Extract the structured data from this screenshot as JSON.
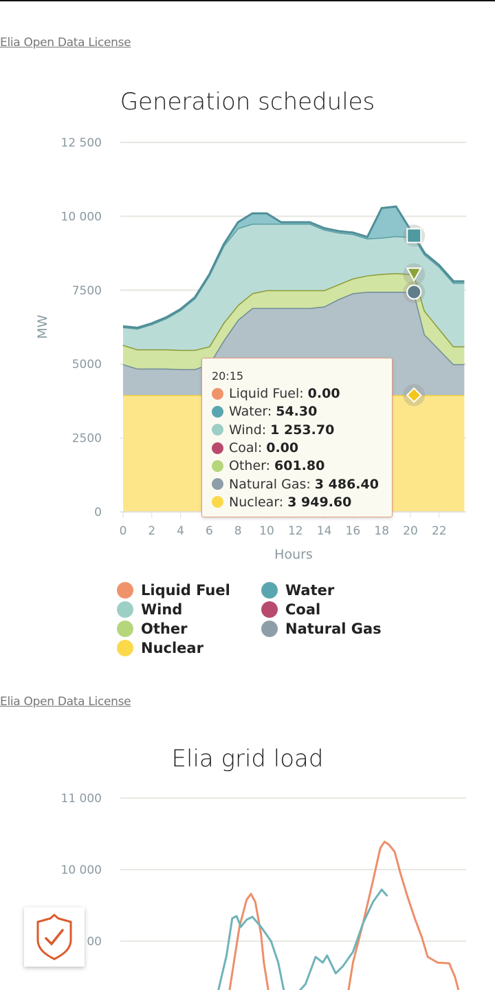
{
  "license_link": "Elia Open Data License",
  "chart_data": [
    {
      "type": "area",
      "stacked": true,
      "title": "Generation schedules",
      "xlabel": "Hours",
      "ylabel": "MW",
      "xlim": [
        0,
        24
      ],
      "ylim": [
        0,
        12500
      ],
      "x_ticks": [
        "0",
        "2",
        "4",
        "6",
        "8",
        "10",
        "12",
        "14",
        "16",
        "18",
        "20",
        "22"
      ],
      "y_ticks": [
        "0",
        "2500",
        "5000",
        "7500",
        "10 000",
        "12 500"
      ],
      "x": [
        0,
        1,
        2,
        3,
        4,
        5,
        6,
        7,
        8,
        9,
        10,
        11,
        12,
        13,
        14,
        15,
        16,
        17,
        18,
        19,
        20.25,
        21,
        22,
        23,
        23.75
      ],
      "series": [
        {
          "name": "Nuclear",
          "color": "#fcd94a",
          "values": [
            3950,
            3950,
            3950,
            3950,
            3950,
            3950,
            3950,
            3950,
            3950,
            3950,
            3950,
            3950,
            3950,
            3950,
            3950,
            3950,
            3950,
            3950,
            3950,
            3950,
            3949.6,
            3950,
            3950,
            3950,
            3950
          ]
        },
        {
          "name": "Natural Gas",
          "color": "#8e9ea8",
          "values": [
            1050,
            900,
            900,
            900,
            880,
            880,
            1050,
            1850,
            2550,
            2950,
            2950,
            2950,
            2950,
            2950,
            3000,
            3250,
            3450,
            3500,
            3500,
            3500,
            3486.4,
            2050,
            1550,
            1050,
            1050
          ]
        },
        {
          "name": "Other",
          "color": "#b5d67a",
          "values": [
            650,
            650,
            650,
            650,
            650,
            650,
            600,
            600,
            500,
            500,
            600,
            600,
            600,
            600,
            550,
            500,
            500,
            550,
            600,
            630,
            601.8,
            800,
            700,
            600,
            600
          ]
        },
        {
          "name": "Wind",
          "color": "#9ccfc6",
          "values": [
            600,
            700,
            850,
            1050,
            1350,
            1750,
            2400,
            2600,
            2600,
            2350,
            2250,
            2250,
            2250,
            2250,
            2050,
            1750,
            1500,
            1250,
            1230,
            1250,
            1253.7,
            1900,
            2100,
            2150,
            2150
          ]
        },
        {
          "name": "Water",
          "color": "#5aa6b0",
          "values": [
            30,
            30,
            30,
            30,
            30,
            30,
            30,
            50,
            200,
            350,
            350,
            50,
            50,
            50,
            50,
            50,
            50,
            50,
            1000,
            1000,
            54.3,
            50,
            50,
            50,
            50
          ]
        },
        {
          "name": "Coal",
          "color": "#b84a6e",
          "values": [
            0,
            0,
            0,
            0,
            0,
            0,
            0,
            0,
            0,
            0,
            0,
            0,
            0,
            0,
            0,
            0,
            0,
            0,
            0,
            0,
            0,
            0,
            0,
            0,
            0
          ]
        },
        {
          "name": "Liquid Fuel",
          "color": "#f0936b",
          "values": [
            0,
            0,
            0,
            0,
            0,
            0,
            0,
            0,
            0,
            0,
            0,
            0,
            0,
            0,
            0,
            0,
            0,
            0,
            0,
            0,
            0,
            0,
            0,
            0,
            0
          ]
        }
      ],
      "tooltip": {
        "time": "20:15",
        "rows": [
          {
            "label": "Liquid Fuel:",
            "value": "0.00",
            "color": "#f0936b"
          },
          {
            "label": "Water:",
            "value": "54.30",
            "color": "#5aa6b0"
          },
          {
            "label": "Wind:",
            "value": "1 253.70",
            "color": "#9ccfc6"
          },
          {
            "label": "Coal:",
            "value": "0.00",
            "color": "#b84a6e"
          },
          {
            "label": "Other:",
            "value": "601.80",
            "color": "#b5d67a"
          },
          {
            "label": "Natural Gas:",
            "value": "3 486.40",
            "color": "#8e9ea8"
          },
          {
            "label": "Nuclear:",
            "value": "3 949.60",
            "color": "#fcd94a"
          }
        ]
      },
      "legend": [
        {
          "label": "Liquid Fuel",
          "color": "#f0936b"
        },
        {
          "label": "Water",
          "color": "#5aa6b0"
        },
        {
          "label": "Wind",
          "color": "#9ccfc6"
        },
        {
          "label": "Coal",
          "color": "#b84a6e"
        },
        {
          "label": "Other",
          "color": "#b5d67a"
        },
        {
          "label": "Natural Gas",
          "color": "#8e9ea8"
        },
        {
          "label": "Nuclear",
          "color": "#fcd94a"
        }
      ]
    },
    {
      "type": "line",
      "title": "Elia grid load",
      "xlim": [
        0,
        24
      ],
      "ylim_visible": [
        8300,
        11000
      ],
      "y_ticks": [
        "11 000",
        "10 000",
        "00"
      ],
      "series": [
        {
          "name": "orange",
          "color": "#ec8f6a",
          "x": [
            7.4,
            8.1,
            8.6,
            8.9,
            9.2,
            9.6,
            9.8,
            10.2,
            15.6,
            16,
            16.7,
            17.4,
            17.9,
            18.2,
            18.5,
            18.9,
            19.3,
            19.8,
            20.3,
            20.8,
            21.2,
            21.9,
            22.7,
            23.1,
            23.5
          ],
          "values": [
            8300,
            9200,
            9580,
            9660,
            9550,
            9100,
            8700,
            8200,
            8200,
            8700,
            9250,
            9850,
            10300,
            10390,
            10350,
            10250,
            9950,
            9620,
            9320,
            9050,
            8780,
            8700,
            8690,
            8500,
            8200
          ]
        },
        {
          "name": "teal",
          "color": "#6fb3b8",
          "x": [
            6.5,
            7.2,
            7.6,
            7.9,
            8.2,
            8.6,
            9,
            9.6,
            10.3,
            10.8,
            11.2,
            11.8,
            12.7,
            13.4,
            13.9,
            14.2,
            14.8,
            15.3,
            16,
            16.7,
            17.4,
            18,
            18.4
          ],
          "values": [
            8200,
            8800,
            9320,
            9350,
            9200,
            9300,
            9340,
            9200,
            9000,
            8700,
            8300,
            8200,
            8400,
            8780,
            8700,
            8800,
            8550,
            8650,
            8850,
            9250,
            9550,
            9720,
            9630
          ]
        }
      ]
    }
  ]
}
